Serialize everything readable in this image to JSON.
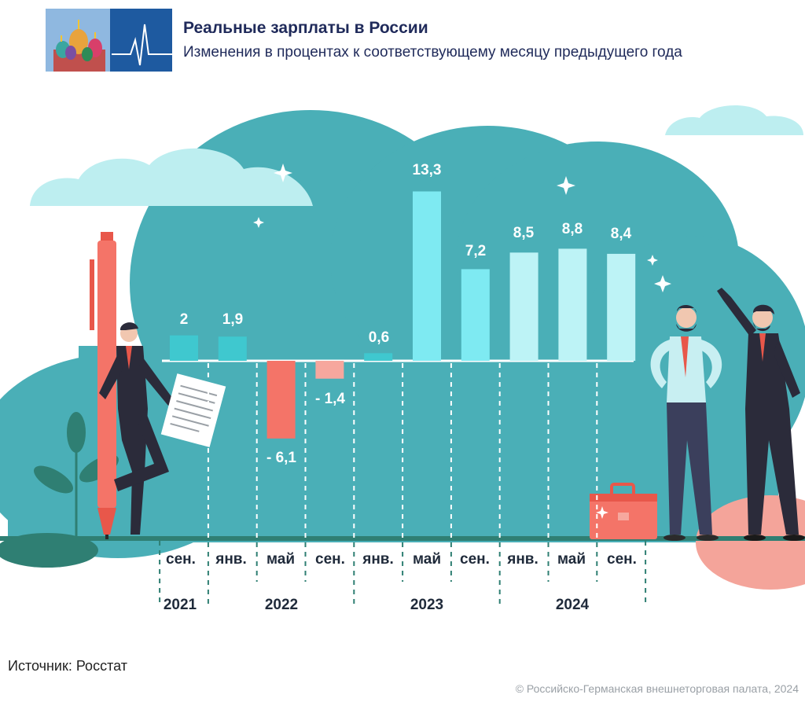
{
  "header": {
    "title": "Реальные зарплаты в России",
    "subtitle": "Изменения в процентах к соответствующему месяцу предыдущего года"
  },
  "footer": {
    "source": "Источник: Росстат",
    "copyright": "© Российско-Германская внешнеторговая палата, 2024"
  },
  "colors": {
    "background_blob": "#4aafb7",
    "positive_2021_2022": "#3fc8cf",
    "negative_2022": "#f47468",
    "negative_light": "#f6a79e",
    "positive_2023": "#7eeaf2",
    "positive_2024": "#bdf3f6",
    "baseline": "#ffffff",
    "label_dark": "#1f2a3a"
  },
  "chart_data": {
    "type": "bar",
    "title": "Реальные зарплаты в России",
    "subtitle": "Изменения в процентах к соответствующему месяцу предыдущего года",
    "categories": [
      "сен.",
      "янв.",
      "май",
      "сен.",
      "янв.",
      "май",
      "сен.",
      "янв.",
      "май",
      "сен."
    ],
    "years": [
      {
        "label": "2021",
        "span": [
          0,
          0
        ]
      },
      {
        "label": "2022",
        "span": [
          1,
          3
        ]
      },
      {
        "label": "2023",
        "span": [
          4,
          6
        ]
      },
      {
        "label": "2024",
        "span": [
          7,
          9
        ]
      }
    ],
    "values": [
      2,
      1.9,
      -6.1,
      -1.4,
      0.6,
      13.3,
      7.2,
      8.5,
      8.8,
      8.4
    ],
    "value_labels": [
      "2",
      "1,9",
      "- 6,1",
      "- 1,4",
      "0,6",
      "13,3",
      "7,2",
      "8,5",
      "8,8",
      "8,4"
    ],
    "xlabel": "",
    "ylabel": "",
    "ylim": [
      -6.1,
      13.3
    ],
    "grid": false,
    "legend": "none"
  }
}
